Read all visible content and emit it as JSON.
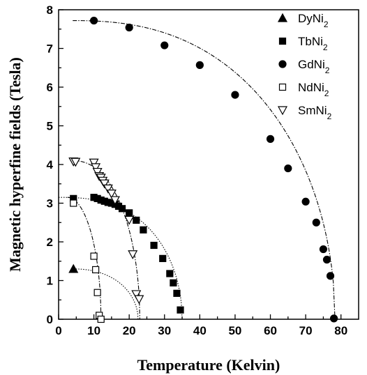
{
  "chart_data": {
    "type": "scatter",
    "title": "",
    "xlabel": "Temperature (Kelvin)",
    "ylabel": "Magnetic hyperfine fields (Tesla)",
    "xlim": [
      0,
      85
    ],
    "ylim": [
      0,
      8
    ],
    "xticks": [
      0,
      10,
      20,
      30,
      40,
      50,
      60,
      70,
      80
    ],
    "yticks": [
      0,
      1,
      2,
      3,
      4,
      5,
      6,
      7,
      8
    ],
    "grid": false,
    "legend_position": "top-right",
    "series": [
      {
        "name": "DyNi2",
        "base": "DyNi",
        "sub": "2",
        "marker": "triangle-up-filled",
        "x": [
          4.2
        ],
        "y": [
          1.3
        ],
        "fit": {
          "style": "dotted",
          "T0": 4.2,
          "B0": 1.3,
          "Tc": 22.5,
          "n": 2.2
        }
      },
      {
        "name": "TbNi2",
        "base": "TbNi",
        "sub": "2",
        "marker": "square-filled",
        "x": [
          4.2,
          10,
          11,
          12,
          13,
          14,
          15,
          16,
          17,
          18,
          20,
          22,
          24,
          27,
          29.5,
          31.5,
          32.5,
          33.5,
          34.5
        ],
        "y": [
          3.12,
          3.15,
          3.12,
          3.08,
          3.05,
          3.02,
          3.0,
          2.97,
          2.92,
          2.86,
          2.75,
          2.56,
          2.31,
          1.91,
          1.57,
          1.18,
          0.94,
          0.67,
          0.24
        ],
        "fit": {
          "style": "dotted",
          "T0": 0,
          "B0": 3.15,
          "Tc": 35,
          "n": 2.6
        }
      },
      {
        "name": "GdNi2",
        "base": "GdNi",
        "sub": "2",
        "marker": "circle-filled",
        "x": [
          10,
          20,
          30,
          40,
          50,
          60,
          65,
          70,
          73,
          75,
          76,
          77,
          78
        ],
        "y": [
          7.72,
          7.54,
          7.08,
          6.57,
          5.8,
          4.66,
          3.9,
          3.04,
          2.5,
          1.81,
          1.54,
          1.12,
          0.02
        ],
        "fit": {
          "style": "dash-dot",
          "T0": 4,
          "B0": 7.72,
          "Tc": 78.3,
          "n": 2.4
        }
      },
      {
        "name": "NdNi2",
        "base": "NdNi",
        "sub": "2",
        "marker": "square-open",
        "x": [
          4.2,
          10,
          10.5,
          11,
          11.5,
          12
        ],
        "y": [
          3.0,
          1.63,
          1.28,
          0.69,
          0.1,
          0.0
        ],
        "fit": {
          "style": "dash-dot",
          "T0": 2.5,
          "B0": 3.15,
          "Tc": 12,
          "n": 2.0
        }
      },
      {
        "name": "SmNi2",
        "base": "SmNi",
        "sub": "2",
        "marker": "triangle-down-open",
        "x": [
          4.2,
          4.8,
          10,
          10.5,
          11,
          11.5,
          12,
          12.5,
          13,
          14,
          15,
          16,
          20,
          21,
          22,
          22.8
        ],
        "y": [
          4.08,
          4.07,
          4.05,
          3.93,
          3.81,
          3.7,
          3.66,
          3.58,
          3.51,
          3.38,
          3.25,
          3.08,
          2.57,
          1.68,
          0.65,
          0.52
        ],
        "fit": {
          "style": "dash-dot",
          "T0": 4,
          "B0": 4.1,
          "Tc": 23,
          "n": 2.2
        }
      }
    ]
  }
}
